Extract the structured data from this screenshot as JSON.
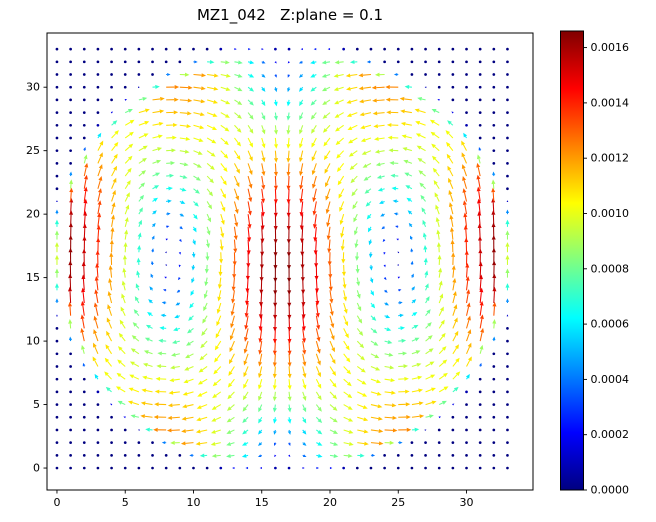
{
  "title": "MZ1_042   Z:plane = 0.1",
  "chart_data": {
    "type": "quiver",
    "title": "MZ1_042   Z:plane = 0.1",
    "xlabel": "",
    "ylabel": "",
    "x_ticks": [
      0,
      5,
      10,
      15,
      20,
      25,
      30
    ],
    "y_ticks": [
      0,
      5,
      10,
      15,
      20,
      25,
      30
    ],
    "x_tick_labels": [
      "0",
      "5",
      "10",
      "15",
      "20",
      "25",
      "30"
    ],
    "y_tick_labels": [
      "0",
      "5",
      "10",
      "15",
      "20",
      "25",
      "30"
    ],
    "xlim": [
      -0.73,
      34.87
    ],
    "ylim": [
      -1.73,
      34.27
    ],
    "grid": {
      "nx": 34,
      "ny": 34,
      "x0": 0,
      "y0": 0,
      "dx": 1,
      "dy": 1
    },
    "field_model": {
      "type": "double_convection_roll",
      "description": "Two counter-rotating rolls in a circular region: strong downward jet on the vertical centerline, upflow along both side walls, inward flow at top, outward at bottom; near-zero velocity outside the circle, at walls and at the two vortex cores.",
      "domain_size": 33,
      "vmax": 0.00166,
      "u_scale": 1.55,
      "mask": {
        "cx": 16.5,
        "cy": 16.5,
        "r_outer": 17.2,
        "ramp": 1.2
      },
      "vortex_cores": [
        [
          8.25,
          16.5
        ],
        [
          24.75,
          16.5
        ]
      ],
      "rotation": [
        "clockwise",
        "counter-clockwise"
      ],
      "dot_threshold": 9e-05
    },
    "colormap": {
      "name": "jet",
      "stops": [
        "#000080",
        "#0000ff",
        "#0080ff",
        "#00ffff",
        "#80ff80",
        "#ffff00",
        "#ff8000",
        "#ff0000",
        "#800000"
      ]
    },
    "colorbar": {
      "vmin": 0,
      "vmax": 0.00166,
      "tick_values": [
        0.0,
        0.0002,
        0.0004,
        0.0006,
        0.0008,
        0.001,
        0.0012,
        0.0014,
        0.0016
      ],
      "tick_labels": [
        "0.0000",
        "0.0002",
        "0.0004",
        "0.0006",
        "0.0008",
        "0.0010",
        "0.0012",
        "0.0014",
        "0.0016"
      ]
    },
    "legend": null,
    "grid_lines": false
  },
  "colors": {
    "axes": "#000000",
    "text": "#000000",
    "background": "#ffffff"
  }
}
